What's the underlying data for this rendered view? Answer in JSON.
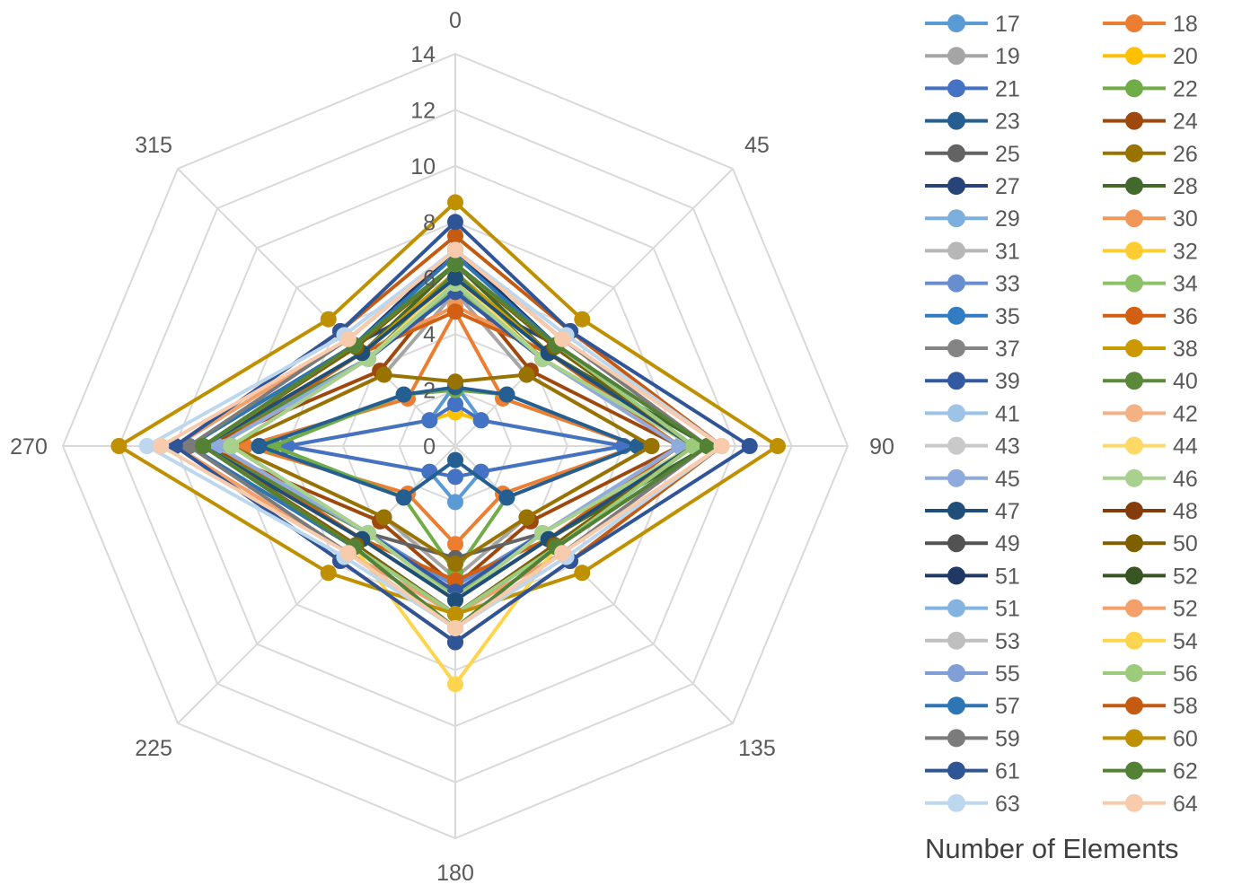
{
  "chart_data": {
    "type": "radar",
    "axes": [
      "0",
      "45",
      "90",
      "135",
      "180",
      "225",
      "270",
      "315"
    ],
    "r_ticks": [
      "0",
      "2",
      "4",
      "6",
      "8",
      "10",
      "12",
      "14"
    ],
    "r_range": [
      0,
      14
    ],
    "grid": true,
    "legend_title": "Number of Elements",
    "legend_position": "right",
    "series": [
      {
        "name": "17",
        "color": "#5B9BD5",
        "values": [
          2.2,
          1.3,
          6.0,
          1.3,
          2.0,
          1.3,
          6.0,
          1.3
        ]
      },
      {
        "name": "18",
        "color": "#ED7D31",
        "values": [
          4.8,
          2.4,
          6.5,
          2.4,
          3.5,
          2.4,
          7.5,
          2.4
        ]
      },
      {
        "name": "19",
        "color": "#A5A5A5",
        "values": [
          5.5,
          3.6,
          7.0,
          3.6,
          4.7,
          3.6,
          8.0,
          3.6
        ]
      },
      {
        "name": "20",
        "color": "#FFC000",
        "values": [
          1.2,
          1.3,
          6.0,
          1.3,
          1.1,
          1.3,
          6.0,
          1.3
        ]
      },
      {
        "name": "21",
        "color": "#4472C4",
        "values": [
          1.5,
          1.3,
          6.0,
          1.3,
          1.1,
          1.3,
          6.0,
          1.3
        ]
      },
      {
        "name": "22",
        "color": "#70AD47",
        "values": [
          2.0,
          2.6,
          6.5,
          2.6,
          4.5,
          2.6,
          6.5,
          2.6
        ]
      },
      {
        "name": "23",
        "color": "#255E91",
        "values": [
          2.1,
          2.6,
          6.5,
          2.6,
          0.5,
          2.6,
          7.0,
          2.6
        ]
      },
      {
        "name": "24",
        "color": "#9E480E",
        "values": [
          6.0,
          3.8,
          8.0,
          3.8,
          5.0,
          3.8,
          9.0,
          3.8
        ]
      },
      {
        "name": "25",
        "color": "#636363",
        "values": [
          6.0,
          4.4,
          8.5,
          4.4,
          4.0,
          4.4,
          9.0,
          4.4
        ]
      },
      {
        "name": "26",
        "color": "#997300",
        "values": [
          2.3,
          3.6,
          7.0,
          3.6,
          4.2,
          3.6,
          8.0,
          3.6
        ]
      },
      {
        "name": "27",
        "color": "#264478",
        "values": [
          5.5,
          5.1,
          8.5,
          5.1,
          6.0,
          5.1,
          9.5,
          5.1
        ]
      },
      {
        "name": "28",
        "color": "#43682B",
        "values": [
          6.5,
          4.7,
          9.0,
          4.7,
          5.5,
          4.7,
          9.0,
          4.7
        ]
      },
      {
        "name": "29",
        "color": "#7CAFDD",
        "values": [
          5.5,
          4.4,
          8.0,
          4.4,
          5.0,
          4.4,
          8.5,
          4.4
        ]
      },
      {
        "name": "30",
        "color": "#F1975A",
        "values": [
          5.0,
          4.7,
          8.0,
          4.7,
          5.5,
          4.7,
          9.0,
          4.7
        ]
      },
      {
        "name": "31",
        "color": "#B7B7B7",
        "values": [
          5.8,
          4.4,
          8.0,
          4.4,
          5.3,
          4.4,
          8.5,
          4.4
        ]
      },
      {
        "name": "32",
        "color": "#FFCD33",
        "values": [
          5.8,
          4.4,
          8.5,
          4.4,
          5.5,
          4.4,
          8.5,
          4.4
        ]
      },
      {
        "name": "33",
        "color": "#698ED0",
        "values": [
          5.5,
          4.4,
          8.0,
          4.4,
          5.0,
          4.4,
          8.0,
          4.4
        ]
      },
      {
        "name": "34",
        "color": "#8CC168",
        "values": [
          5.7,
          4.4,
          8.5,
          4.4,
          5.3,
          4.4,
          8.0,
          4.4
        ]
      },
      {
        "name": "35",
        "color": "#327DC2",
        "values": [
          6.0,
          4.7,
          8.5,
          4.7,
          5.5,
          4.7,
          9.0,
          4.7
        ]
      },
      {
        "name": "36",
        "color": "#D26012",
        "values": [
          4.8,
          4.7,
          8.0,
          4.7,
          4.8,
          4.7,
          8.5,
          4.7
        ]
      },
      {
        "name": "37",
        "color": "#848484",
        "values": [
          6.0,
          4.7,
          8.5,
          4.7,
          5.5,
          4.7,
          9.0,
          4.7
        ]
      },
      {
        "name": "38",
        "color": "#CC9A00",
        "values": [
          6.2,
          4.7,
          8.5,
          4.7,
          5.5,
          4.7,
          9.0,
          4.7
        ]
      },
      {
        "name": "39",
        "color": "#335AA1",
        "values": [
          5.5,
          4.4,
          8.0,
          4.4,
          5.2,
          4.4,
          9.0,
          4.4
        ]
      },
      {
        "name": "40",
        "color": "#5A8A39",
        "values": [
          6.2,
          4.4,
          8.5,
          4.4,
          5.5,
          4.4,
          9.0,
          4.4
        ]
      },
      {
        "name": "41",
        "color": "#9DC3E6",
        "values": [
          5.8,
          4.4,
          8.0,
          4.4,
          5.5,
          4.4,
          8.5,
          4.4
        ]
      },
      {
        "name": "42",
        "color": "#F4B183",
        "values": [
          5.8,
          4.4,
          8.0,
          4.4,
          5.5,
          4.4,
          8.5,
          4.4
        ]
      },
      {
        "name": "43",
        "color": "#C9C9C9",
        "values": [
          5.8,
          4.4,
          8.0,
          4.4,
          5.5,
          4.4,
          8.5,
          4.4
        ]
      },
      {
        "name": "44",
        "color": "#FFD966",
        "values": [
          6.0,
          4.4,
          8.5,
          4.4,
          5.5,
          4.4,
          8.5,
          4.4
        ]
      },
      {
        "name": "45",
        "color": "#8FAADC",
        "values": [
          5.8,
          4.4,
          8.0,
          4.4,
          5.5,
          4.4,
          8.5,
          4.4
        ]
      },
      {
        "name": "46",
        "color": "#A9D18E",
        "values": [
          5.8,
          4.4,
          8.5,
          4.4,
          5.5,
          4.4,
          8.0,
          4.4
        ]
      },
      {
        "name": "47",
        "color": "#1F4E79",
        "values": [
          6.0,
          4.7,
          8.5,
          4.7,
          5.5,
          4.7,
          9.0,
          4.7
        ]
      },
      {
        "name": "48",
        "color": "#843C0C",
        "values": [
          6.5,
          5.0,
          8.5,
          5.0,
          6.0,
          5.0,
          9.0,
          5.0
        ]
      },
      {
        "name": "49",
        "color": "#525252",
        "values": [
          6.5,
          5.0,
          8.5,
          5.0,
          6.0,
          5.0,
          9.0,
          5.0
        ]
      },
      {
        "name": "50",
        "color": "#7F6000",
        "values": [
          6.5,
          5.0,
          8.5,
          5.0,
          6.0,
          5.0,
          9.0,
          5.0
        ]
      },
      {
        "name": "51",
        "color": "#203864",
        "values": [
          7.0,
          5.1,
          9.0,
          5.1,
          6.0,
          5.1,
          9.5,
          5.1
        ]
      },
      {
        "name": "52",
        "color": "#375623",
        "values": [
          6.5,
          5.1,
          9.0,
          5.1,
          6.0,
          5.1,
          9.0,
          5.1
        ]
      },
      {
        "name": "51",
        "color": "#85B3E0",
        "values": [
          7.0,
          5.4,
          9.0,
          5.4,
          6.0,
          5.4,
          10.0,
          5.4
        ]
      },
      {
        "name": "52",
        "color": "#F4A06A",
        "values": [
          7.0,
          5.4,
          9.0,
          5.4,
          6.0,
          5.4,
          10.0,
          5.4
        ]
      },
      {
        "name": "53",
        "color": "#BFBFBF",
        "values": [
          6.5,
          5.1,
          8.5,
          5.1,
          6.0,
          5.1,
          9.0,
          5.1
        ]
      },
      {
        "name": "54",
        "color": "#FFD54F",
        "values": [
          6.5,
          5.1,
          8.5,
          5.1,
          8.5,
          5.1,
          9.0,
          5.1
        ]
      },
      {
        "name": "55",
        "color": "#7F9FD6",
        "values": [
          6.5,
          5.1,
          8.5,
          5.1,
          6.0,
          5.1,
          9.0,
          5.1
        ]
      },
      {
        "name": "56",
        "color": "#9BCB7B",
        "values": [
          6.5,
          5.1,
          8.5,
          5.1,
          6.0,
          5.1,
          9.0,
          5.1
        ]
      },
      {
        "name": "57",
        "color": "#2E75B6",
        "values": [
          6.8,
          5.1,
          9.0,
          5.1,
          6.5,
          5.1,
          9.5,
          5.1
        ]
      },
      {
        "name": "58",
        "color": "#C55A11",
        "values": [
          7.5,
          5.8,
          9.5,
          5.8,
          7.0,
          5.8,
          10.0,
          5.8
        ]
      },
      {
        "name": "59",
        "color": "#7B7B7B",
        "values": [
          7.0,
          5.4,
          9.0,
          5.4,
          6.5,
          5.4,
          9.5,
          5.4
        ]
      },
      {
        "name": "60",
        "color": "#BF9000",
        "values": [
          8.7,
          6.4,
          11.5,
          6.4,
          6.0,
          6.4,
          12.0,
          6.4
        ]
      },
      {
        "name": "61",
        "color": "#2F5597",
        "values": [
          8.0,
          5.8,
          10.5,
          5.8,
          7.0,
          5.8,
          10.0,
          5.8
        ]
      },
      {
        "name": "62",
        "color": "#548235",
        "values": [
          6.5,
          5.1,
          9.0,
          5.1,
          6.5,
          5.1,
          9.0,
          5.1
        ]
      },
      {
        "name": "63",
        "color": "#BDD7EE",
        "values": [
          7.0,
          5.6,
          9.5,
          5.6,
          6.5,
          5.6,
          11.0,
          5.6
        ]
      },
      {
        "name": "64",
        "color": "#F8CBAD",
        "values": [
          7.0,
          5.4,
          9.5,
          5.4,
          6.5,
          5.4,
          10.5,
          5.4
        ]
      }
    ]
  }
}
